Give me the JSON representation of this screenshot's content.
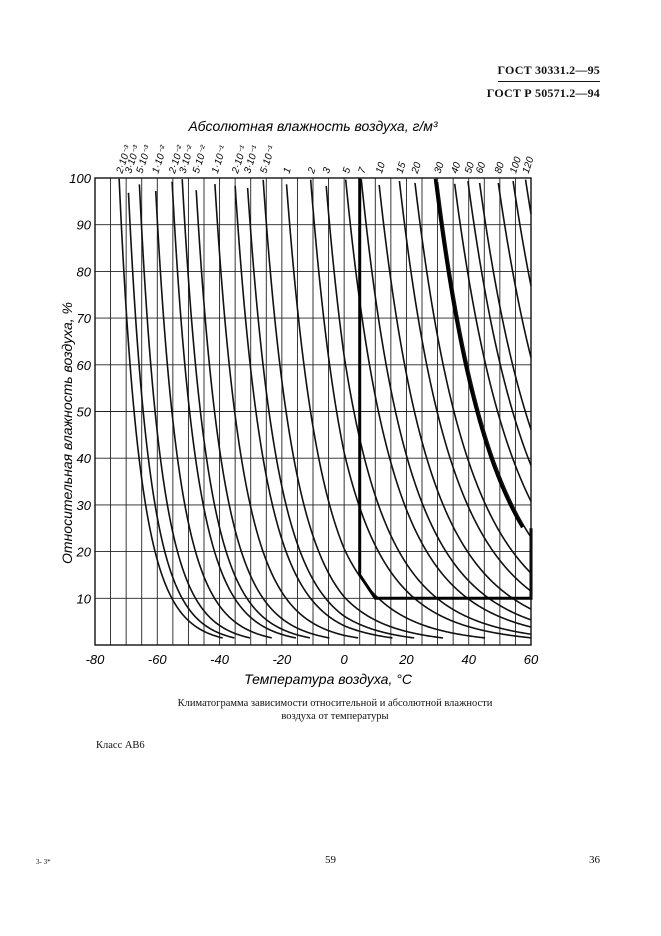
{
  "header": {
    "standard_1": "ГОСТ 30331.2—95",
    "standard_2": "ГОСТ Р 50571.2—94"
  },
  "chart_data": {
    "type": "line",
    "title": "Абсолютная влажность воздуха, г/м³",
    "xlabel": "Температура воздуха, °С",
    "ylabel": "Относительная влажность воздуха, %",
    "xlim": [
      -80,
      60
    ],
    "ylim": [
      0,
      100
    ],
    "grid": true,
    "x_ticks": [
      "-80",
      "-60",
      "-40",
      "-20",
      "0",
      "20",
      "40",
      "60"
    ],
    "y_ticks": [
      "10",
      "20",
      "30",
      "40",
      "50",
      "60",
      "70",
      "80",
      "90",
      "100"
    ],
    "isoline_labels": [
      "2·10⁻³",
      "3·10⁻³",
      "5·10⁻³",
      "1·10⁻²",
      "2·10⁻²",
      "3·10⁻²",
      "5·10⁻²",
      "1·10⁻¹",
      "2·10⁻¹",
      "3·10⁻¹",
      "5·10⁻¹",
      "1",
      "2",
      "3",
      "5",
      "7",
      "10",
      "15",
      "20",
      "30",
      "40",
      "50",
      "60",
      "80",
      "100",
      "120"
    ],
    "isoline_values": [
      0.002,
      0.003,
      0.005,
      0.01,
      0.02,
      0.03,
      0.05,
      0.1,
      0.2,
      0.3,
      0.5,
      1,
      2,
      3,
      5,
      7,
      10,
      15,
      20,
      30,
      40,
      50,
      60,
      80,
      100,
      120
    ],
    "class_boundary": {
      "description": "Bold outline of the class region",
      "points": [
        [
          5,
          100
        ],
        [
          5,
          15
        ],
        [
          10,
          10
        ],
        [
          60,
          10
        ],
        [
          60,
          25
        ]
      ],
      "upper_curve_absolute_humidity": 29
    }
  },
  "caption": {
    "line1": "Климатограмма зависимости относительной и абсолютной влажности",
    "line2": "воздуха от температуры"
  },
  "class_text": "Класс АВ6",
  "footer": {
    "left": "3- 3*",
    "center": "59",
    "right": "36"
  }
}
